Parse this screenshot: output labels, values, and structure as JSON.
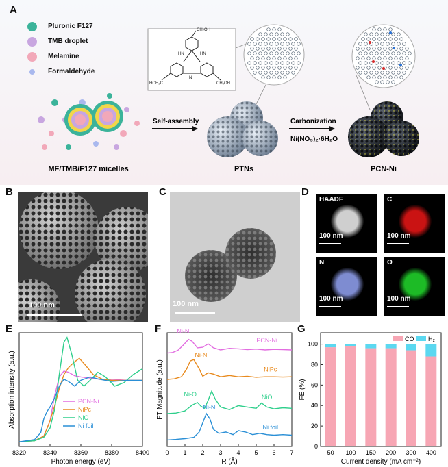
{
  "panel_labels": {
    "a": "A",
    "b": "B",
    "c": "C",
    "d": "D",
    "e": "E",
    "f": "F",
    "g": "G"
  },
  "scheme": {
    "legend": [
      "Pluronic F127",
      "TMB droplet",
      "Melamine",
      "Formaldehyde"
    ],
    "legend_colors": [
      "#3bb39a",
      "#c8a6e0",
      "#f2a8b9",
      "#a9b8ee"
    ],
    "arrow1": "Self-assembly",
    "arrow2_top": "Carbonization",
    "arrow2_bottom": "Ni(NO₃)₂·6H₂O",
    "labels": [
      "MF/TMB/F127 micelles",
      "PTNs",
      "PCN-Ni"
    ],
    "chem": {
      "top": "CH₂OH",
      "left": "HOH₂C",
      "right": "CH₂OH",
      "nh": "HN",
      "n": "N",
      "h": "H"
    }
  },
  "micro": {
    "b_scale": "100 nm",
    "c_scale": "100 nm",
    "d_tiles": [
      {
        "label": "HAADF",
        "scale": "100 nm",
        "color": "#e6e6e6"
      },
      {
        "label": "C",
        "scale": "100 nm",
        "color": "#e01515"
      },
      {
        "label": "N",
        "scale": "100 nm",
        "color": "#8c9be8"
      },
      {
        "label": "O",
        "scale": "100 nm",
        "color": "#20d02a"
      }
    ]
  },
  "chart_data": [
    {
      "type": "line",
      "panel": "E",
      "xlabel": "Photon energy (eV)",
      "ylabel": "Absorption intensity (a.u.)",
      "xlim": [
        8320,
        8400
      ],
      "x_ticks": [
        8320,
        8340,
        8360,
        8380,
        8400
      ],
      "legend_placement": "bottom-right",
      "series": [
        {
          "name": "PCN-Ni",
          "color": "#e26de0",
          "x": [
            8320,
            8330,
            8336,
            8340,
            8343,
            8346,
            8349,
            8352,
            8356,
            8360,
            8366,
            8372,
            8380,
            8390,
            8400
          ],
          "y": [
            0.02,
            0.03,
            0.07,
            0.2,
            0.42,
            0.58,
            0.63,
            0.62,
            0.59,
            0.58,
            0.57,
            0.56,
            0.56,
            0.55,
            0.55
          ]
        },
        {
          "name": "NiPc",
          "color": "#e88a1e",
          "x": [
            8320,
            8330,
            8336,
            8340,
            8343,
            8346,
            8349,
            8352,
            8356,
            8359,
            8363,
            8368,
            8374,
            8380,
            8390,
            8400
          ],
          "y": [
            0.02,
            0.03,
            0.07,
            0.2,
            0.33,
            0.48,
            0.6,
            0.66,
            0.71,
            0.74,
            0.68,
            0.6,
            0.56,
            0.55,
            0.55,
            0.55
          ]
        },
        {
          "name": "NiO",
          "color": "#2fcf8c",
          "x": [
            8320,
            8330,
            8336,
            8340,
            8343,
            8346,
            8349,
            8351,
            8354,
            8358,
            8362,
            8366,
            8371,
            8376,
            8382,
            8388,
            8394,
            8400
          ],
          "y": [
            0.02,
            0.03,
            0.06,
            0.14,
            0.3,
            0.6,
            0.88,
            0.92,
            0.78,
            0.55,
            0.5,
            0.55,
            0.62,
            0.58,
            0.5,
            0.53,
            0.6,
            0.65
          ]
        },
        {
          "name": "Ni foil",
          "color": "#2a8fd6",
          "x": [
            8320,
            8330,
            8334,
            8336,
            8338,
            8340,
            8343,
            8346,
            8349,
            8352,
            8356,
            8360,
            8366,
            8372,
            8380,
            8390,
            8400
          ],
          "y": [
            0.02,
            0.04,
            0.1,
            0.22,
            0.28,
            0.32,
            0.4,
            0.5,
            0.56,
            0.54,
            0.5,
            0.55,
            0.58,
            0.56,
            0.54,
            0.55,
            0.55
          ]
        }
      ]
    },
    {
      "type": "line",
      "panel": "F",
      "xlabel": "R (Å)",
      "ylabel": "FT Magnitude (a.u.)",
      "xlim": [
        0,
        7
      ],
      "x_ticks": [
        0,
        1,
        2,
        3,
        4,
        5,
        6,
        7
      ],
      "series": [
        {
          "name": "PCN-Ni",
          "color": "#e26de0",
          "label_x": 5.6,
          "label_y": 4.0,
          "x": [
            0,
            0.3,
            0.6,
            0.9,
            1.2,
            1.4,
            1.7,
            2.0,
            2.3,
            2.6,
            3.0,
            3.5,
            4.0,
            4.5,
            5.0,
            5.5,
            6.0,
            6.5,
            7.0
          ],
          "y": [
            3.6,
            3.62,
            3.7,
            3.9,
            4.12,
            4.05,
            3.8,
            3.82,
            3.95,
            3.8,
            3.72,
            3.78,
            3.76,
            3.73,
            3.75,
            3.72,
            3.74,
            3.73,
            3.72
          ]
        },
        {
          "name": "NiPc",
          "color": "#e88a1e",
          "label_x": 5.8,
          "label_y": 2.9,
          "x": [
            0,
            0.4,
            0.8,
            1.1,
            1.3,
            1.5,
            1.8,
            2.0,
            2.3,
            2.6,
            3.0,
            3.5,
            4.0,
            4.5,
            5.0,
            5.5,
            6.0,
            6.5,
            7.0
          ],
          "y": [
            2.6,
            2.62,
            2.7,
            3.0,
            3.3,
            3.35,
            3.0,
            2.72,
            2.85,
            2.8,
            2.7,
            2.75,
            2.7,
            2.72,
            2.68,
            2.7,
            2.7,
            2.69,
            2.7
          ]
        },
        {
          "name": "NiO",
          "color": "#2fcf8c",
          "label_x": 5.6,
          "label_y": 1.85,
          "x": [
            0,
            0.5,
            1.0,
            1.4,
            1.7,
            1.9,
            2.1,
            2.3,
            2.5,
            2.7,
            3.0,
            3.5,
            4.0,
            4.5,
            5.0,
            5.3,
            5.6,
            6.0,
            6.5,
            7.0
          ],
          "y": [
            1.3,
            1.32,
            1.4,
            1.62,
            1.72,
            1.58,
            1.5,
            1.8,
            2.15,
            1.85,
            1.55,
            1.45,
            1.6,
            1.55,
            1.5,
            1.7,
            1.55,
            1.48,
            1.52,
            1.5
          ]
        },
        {
          "name": "Ni foil",
          "color": "#2a8fd6",
          "label_x": 5.8,
          "label_y": 0.7,
          "x": [
            0,
            0.5,
            1.0,
            1.5,
            1.8,
            2.0,
            2.2,
            2.4,
            2.6,
            2.9,
            3.3,
            3.7,
            4.0,
            4.4,
            4.8,
            5.2,
            5.6,
            6.0,
            6.5,
            7.0
          ],
          "y": [
            0.3,
            0.32,
            0.35,
            0.4,
            0.6,
            0.95,
            1.3,
            1.1,
            0.7,
            0.55,
            0.6,
            0.5,
            0.65,
            0.6,
            0.5,
            0.55,
            0.5,
            0.48,
            0.5,
            0.48
          ]
        }
      ],
      "annotations": [
        {
          "text": "Ni-N",
          "x": 0.9,
          "y": 4.35,
          "color": "#e26de0"
        },
        {
          "text": "Ni-N",
          "x": 1.9,
          "y": 3.45,
          "color": "#e88a1e"
        },
        {
          "text": "Ni-O",
          "x": 1.3,
          "y": 1.95,
          "color": "#2fcf8c"
        },
        {
          "text": "Ni-Ni",
          "x": 2.4,
          "y": 1.45,
          "color": "#2a8fd6"
        }
      ]
    },
    {
      "type": "bar",
      "panel": "G",
      "stacked": true,
      "xlabel": "Current density (mA cm⁻²)",
      "ylabel": "FE (%)",
      "categories": [
        "50",
        "100",
        "150",
        "200",
        "300",
        "400"
      ],
      "ylim": [
        0,
        100
      ],
      "y_ticks": [
        0,
        20,
        40,
        60,
        80,
        100
      ],
      "legend_placement": "top-right",
      "series": [
        {
          "name": "CO",
          "color": "#f7a6b4",
          "values": [
            97,
            98,
            96,
            96,
            94,
            88
          ]
        },
        {
          "name": "H₂",
          "color": "#5bd8f0",
          "values": [
            3,
            2,
            4,
            4,
            6,
            12
          ]
        }
      ]
    }
  ]
}
